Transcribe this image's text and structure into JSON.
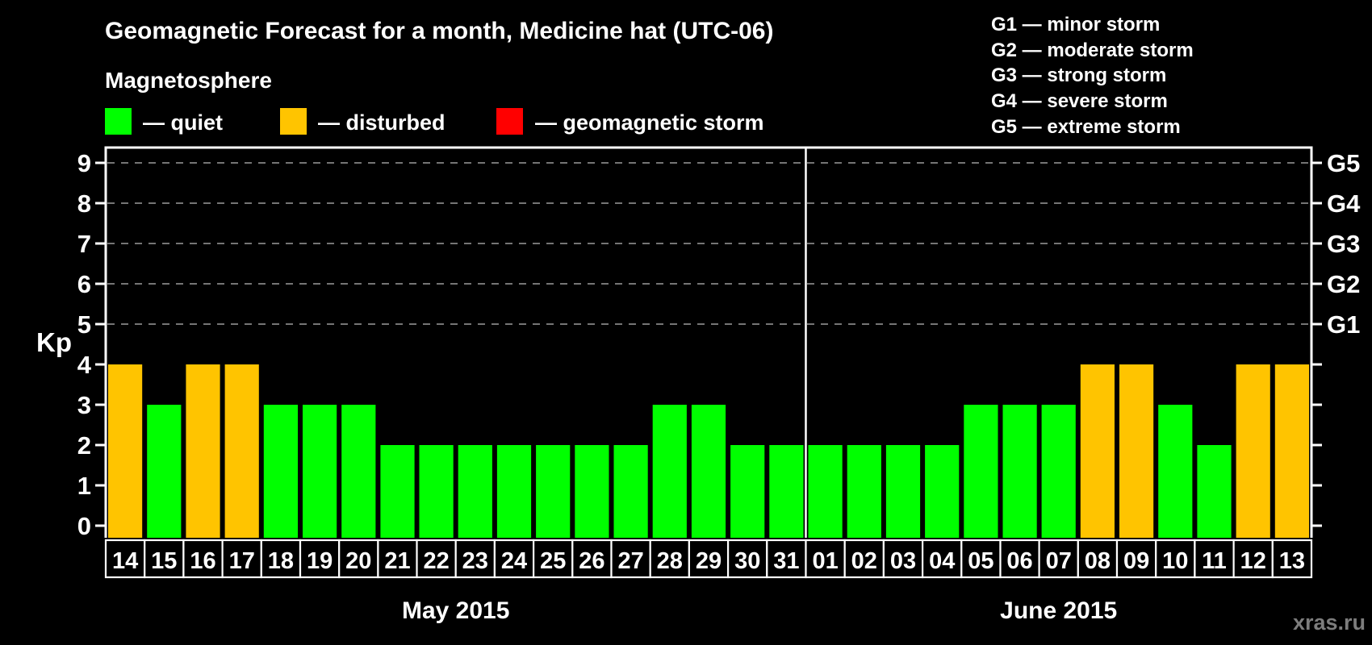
{
  "header": {
    "title": "Geomagnetic Forecast for a month, Medicine hat (UTC-06)",
    "subtitle": "Magnetosphere"
  },
  "legend": {
    "items": [
      {
        "key": "quiet",
        "label": "— quiet",
        "color": "#00ff00"
      },
      {
        "key": "disturbed",
        "label": "— disturbed",
        "color": "#ffc400"
      },
      {
        "key": "storm",
        "label": "— geomagnetic storm",
        "color": "#ff0000"
      }
    ]
  },
  "g_scale_legend": {
    "items": [
      "G1 — minor storm",
      "G2 — moderate storm",
      "G3 — strong storm",
      "G4 — severe storm",
      "G5 — extreme storm"
    ]
  },
  "watermark": "xras.ru",
  "chart_data": {
    "type": "bar",
    "title": "Geomagnetic Forecast for a month, Medicine hat (UTC-06)",
    "ylabel": "Kp",
    "ylim": [
      0,
      9
    ],
    "yticks": [
      0,
      1,
      2,
      3,
      4,
      5,
      6,
      7,
      8,
      9
    ],
    "grid_levels": [
      5,
      6,
      7,
      8,
      9
    ],
    "grid": "dashed-horizontal-at-G-levels",
    "legend_position": "top",
    "right_axis": [
      {
        "kp": 5,
        "label": "G1"
      },
      {
        "kp": 6,
        "label": "G2"
      },
      {
        "kp": 7,
        "label": "G3"
      },
      {
        "kp": 8,
        "label": "G4"
      },
      {
        "kp": 9,
        "label": "G5"
      }
    ],
    "status_colors": {
      "quiet": "#00ff00",
      "disturbed": "#ffc400",
      "storm": "#ff0000"
    },
    "sections": [
      {
        "label": "May 2015",
        "points": [
          {
            "day": "14",
            "kp": 4,
            "status": "disturbed"
          },
          {
            "day": "15",
            "kp": 3,
            "status": "quiet"
          },
          {
            "day": "16",
            "kp": 4,
            "status": "disturbed"
          },
          {
            "day": "17",
            "kp": 4,
            "status": "disturbed"
          },
          {
            "day": "18",
            "kp": 3,
            "status": "quiet"
          },
          {
            "day": "19",
            "kp": 3,
            "status": "quiet"
          },
          {
            "day": "20",
            "kp": 3,
            "status": "quiet"
          },
          {
            "day": "21",
            "kp": 2,
            "status": "quiet"
          },
          {
            "day": "22",
            "kp": 2,
            "status": "quiet"
          },
          {
            "day": "23",
            "kp": 2,
            "status": "quiet"
          },
          {
            "day": "24",
            "kp": 2,
            "status": "quiet"
          },
          {
            "day": "25",
            "kp": 2,
            "status": "quiet"
          },
          {
            "day": "26",
            "kp": 2,
            "status": "quiet"
          },
          {
            "day": "27",
            "kp": 2,
            "status": "quiet"
          },
          {
            "day": "28",
            "kp": 3,
            "status": "quiet"
          },
          {
            "day": "29",
            "kp": 3,
            "status": "quiet"
          },
          {
            "day": "30",
            "kp": 2,
            "status": "quiet"
          },
          {
            "day": "31",
            "kp": 2,
            "status": "quiet"
          }
        ]
      },
      {
        "label": "June 2015",
        "points": [
          {
            "day": "01",
            "kp": 2,
            "status": "quiet"
          },
          {
            "day": "02",
            "kp": 2,
            "status": "quiet"
          },
          {
            "day": "03",
            "kp": 2,
            "status": "quiet"
          },
          {
            "day": "04",
            "kp": 2,
            "status": "quiet"
          },
          {
            "day": "05",
            "kp": 3,
            "status": "quiet"
          },
          {
            "day": "06",
            "kp": 3,
            "status": "quiet"
          },
          {
            "day": "07",
            "kp": 3,
            "status": "quiet"
          },
          {
            "day": "08",
            "kp": 4,
            "status": "disturbed"
          },
          {
            "day": "09",
            "kp": 4,
            "status": "disturbed"
          },
          {
            "day": "10",
            "kp": 3,
            "status": "quiet"
          },
          {
            "day": "11",
            "kp": 2,
            "status": "quiet"
          },
          {
            "day": "12",
            "kp": 4,
            "status": "disturbed"
          },
          {
            "day": "13",
            "kp": 4,
            "status": "disturbed"
          }
        ]
      }
    ]
  }
}
